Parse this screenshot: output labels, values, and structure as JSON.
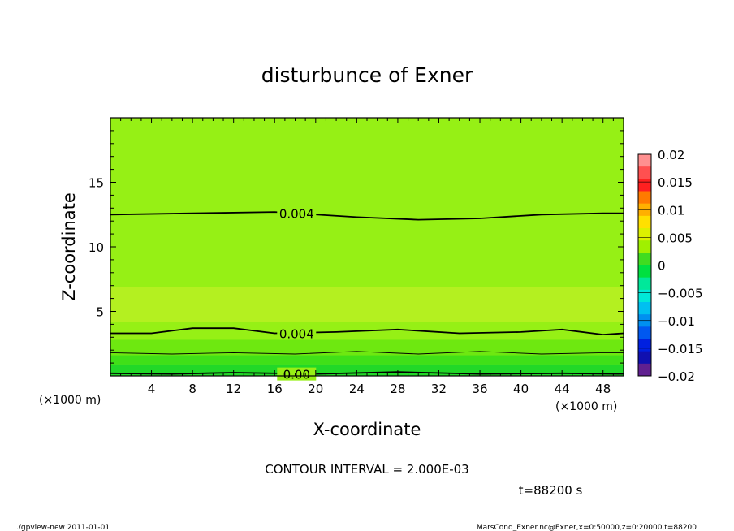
{
  "chart_data": {
    "type": "contour",
    "title": "disturbunce of Exner",
    "xlabel": "X-coordinate",
    "ylabel": "Z-coordinate",
    "x_unit_left": "(×1000 m)",
    "x_unit_right": "(×1000 m)",
    "xlim": [
      0,
      50
    ],
    "ylim": [
      0,
      20
    ],
    "x_ticks": [
      4,
      8,
      12,
      16,
      20,
      24,
      28,
      32,
      36,
      40,
      44,
      48
    ],
    "y_ticks": [
      5,
      10,
      15
    ],
    "contour_interval_text": "CONTOUR INTERVAL = 2.000E-03",
    "time_text": "t=88200 s",
    "footer_left": "./gpview-new  2011-01-01",
    "footer_right": "MarsCond_Exner.nc@Exner,x=0:50000,z=0:20000,t=88200",
    "contour_labels": [
      {
        "text": "0.004",
        "x": 16.4,
        "z": 12.6
      },
      {
        "text": "0.004",
        "x": 16.4,
        "z": 3.3
      },
      {
        "text": "0.00",
        "x": 16.4,
        "z": 0.15
      }
    ],
    "contour_lines": [
      {
        "level": 0.004,
        "points": [
          [
            0,
            12.5
          ],
          [
            8,
            12.6
          ],
          [
            16,
            12.7
          ],
          [
            24,
            12.3
          ],
          [
            30,
            12.1
          ],
          [
            36,
            12.2
          ],
          [
            42,
            12.5
          ],
          [
            48,
            12.6
          ],
          [
            50,
            12.6
          ]
        ]
      },
      {
        "level": 0.004,
        "points": [
          [
            0,
            3.3
          ],
          [
            4,
            3.3
          ],
          [
            8,
            3.7
          ],
          [
            12,
            3.7
          ],
          [
            16,
            3.3
          ],
          [
            22,
            3.4
          ],
          [
            28,
            3.6
          ],
          [
            34,
            3.3
          ],
          [
            40,
            3.4
          ],
          [
            44,
            3.6
          ],
          [
            48,
            3.2
          ],
          [
            50,
            3.3
          ]
        ]
      },
      {
        "level": 0.002,
        "points": [
          [
            0,
            1.8
          ],
          [
            6,
            1.7
          ],
          [
            12,
            1.8
          ],
          [
            18,
            1.7
          ],
          [
            24,
            1.9
          ],
          [
            30,
            1.7
          ],
          [
            36,
            1.9
          ],
          [
            42,
            1.7
          ],
          [
            48,
            1.8
          ],
          [
            50,
            1.8
          ]
        ]
      },
      {
        "level": 0,
        "points": [
          [
            0,
            0.2
          ],
          [
            6,
            0.15
          ],
          [
            12,
            0.25
          ],
          [
            20,
            0.15
          ],
          [
            28,
            0.3
          ],
          [
            36,
            0.15
          ],
          [
            44,
            0.2
          ],
          [
            50,
            0.15
          ]
        ]
      }
    ],
    "fill_bands": [
      {
        "z_top": 20,
        "z_bot": 0,
        "color": "#96f015"
      },
      {
        "z_top": 6.9,
        "z_bot": 4.2,
        "color": "#b4f020"
      },
      {
        "z_top": 2.8,
        "z_bot": 1.6,
        "color": "#6ee810"
      },
      {
        "z_top": 1.6,
        "z_bot": 0.9,
        "color": "#40e018"
      },
      {
        "z_top": 0.9,
        "z_bot": 0,
        "color": "#22d828"
      }
    ],
    "colorbar": {
      "labels": [
        "0.02",
        "0.015",
        "0.01",
        "0.005",
        "0",
        "−0.005",
        "−0.01",
        "−0.015",
        "−0.02"
      ],
      "colors": [
        "#ff9090",
        "#ff5050",
        "#ff2020",
        "#ff7a00",
        "#ffb000",
        "#ffe000",
        "#dcf000",
        "#a0f000",
        "#40dc20",
        "#00e040",
        "#00e89a",
        "#00e8d8",
        "#00c0f0",
        "#0090f0",
        "#0058f0",
        "#0020e0",
        "#1010b0",
        "#602090"
      ]
    }
  }
}
